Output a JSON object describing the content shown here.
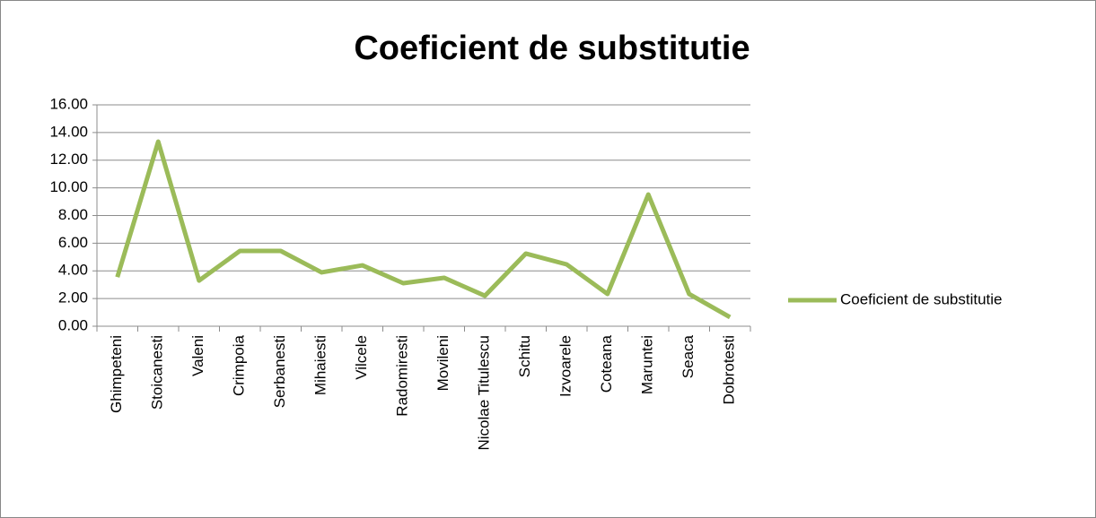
{
  "chart_data": {
    "type": "line",
    "title": "Coeficient de substitutie",
    "categories": [
      "Ghimpeteni",
      "Stoicanesti",
      "Valeni",
      "Crimpoia",
      "Serbanesti",
      "Mihaiesti",
      "Vilcele",
      "Radomiresti",
      "Movileni",
      "Nicolae Titulescu",
      "Schitu",
      "Izvoarele",
      "Coteana",
      "Maruntei",
      "Seaca",
      "Dobrotesti"
    ],
    "series": [
      {
        "name": "Coeficient de substitutie",
        "color": "#9bbb59",
        "values": [
          3.55,
          13.34,
          3.3,
          5.44,
          5.44,
          3.89,
          4.4,
          3.11,
          3.5,
          2.2,
          5.25,
          4.47,
          2.33,
          9.52,
          2.33,
          0.65
        ]
      }
    ],
    "ylim": [
      0,
      16
    ],
    "yticks": [
      {
        "value": 0,
        "label": "0.00"
      },
      {
        "value": 2,
        "label": "2.00"
      },
      {
        "value": 4,
        "label": "4.00"
      },
      {
        "value": 6,
        "label": "6.00"
      },
      {
        "value": 8,
        "label": "8.00"
      },
      {
        "value": 10,
        "label": "10.00"
      },
      {
        "value": 12,
        "label": "12.00"
      },
      {
        "value": 14,
        "label": "14.00"
      },
      {
        "value": 16,
        "label": "16.00"
      }
    ],
    "grid": true,
    "legend": "right"
  }
}
